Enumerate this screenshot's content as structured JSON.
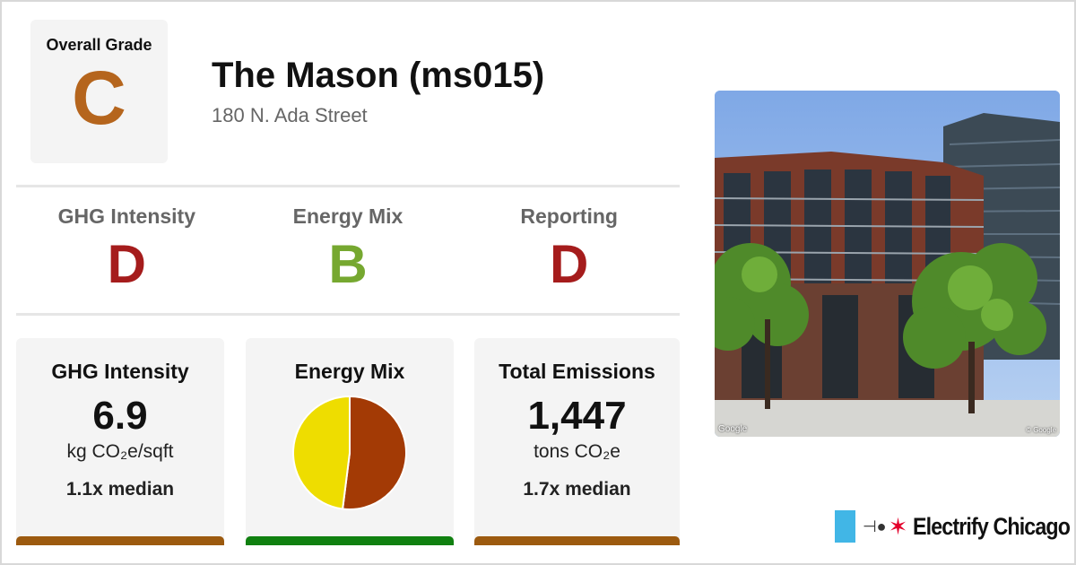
{
  "overall": {
    "label": "Overall Grade",
    "grade": "C",
    "color": "#b5651d"
  },
  "building": {
    "name": "The Mason (ms015)",
    "address": "180 N. Ada Street"
  },
  "subgrades": [
    {
      "label": "GHG Intensity",
      "grade": "D",
      "color": "#a51c1c"
    },
    {
      "label": "Energy Mix",
      "grade": "B",
      "color": "#76a830"
    },
    {
      "label": "Reporting",
      "grade": "D",
      "color": "#a51c1c"
    }
  ],
  "cards": {
    "ghg": {
      "title": "GHG Intensity",
      "value": "6.9",
      "unit": "kg CO₂e/sqft",
      "median": "1.1x median",
      "bar_color": "#9c5a0f"
    },
    "mix": {
      "title": "Energy Mix",
      "bar_color": "#108010"
    },
    "emissions": {
      "title": "Total Emissions",
      "value": "1,447",
      "unit": "tons CO₂e",
      "median": "1.7x median",
      "bar_color": "#9c5a0f"
    }
  },
  "chart_data": {
    "type": "pie",
    "slices": [
      {
        "value": 52,
        "color": "#a33a05"
      },
      {
        "value": 48,
        "color": "#eedd00"
      }
    ]
  },
  "photo": {
    "credit_left": "Google",
    "credit_right": "© Google"
  },
  "brand": {
    "name": "Electrify Chicago",
    "plug_icon": "plug-icon",
    "star_icon": "star-icon"
  }
}
